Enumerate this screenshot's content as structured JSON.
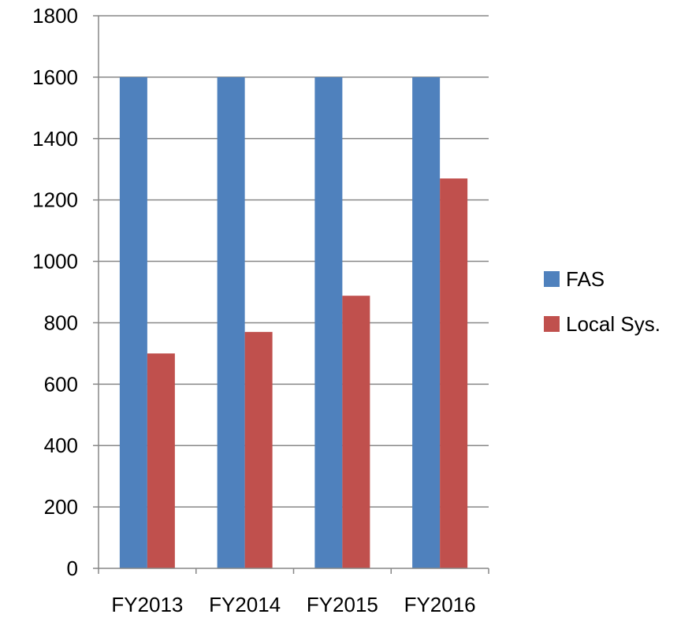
{
  "chart_data": {
    "type": "bar",
    "title": "",
    "xlabel": "",
    "ylabel": "",
    "categories": [
      "FY2013",
      "FY2014",
      "FY2015",
      "FY2016"
    ],
    "series": [
      {
        "name": "FAS",
        "color": "#4F81BD",
        "values": [
          1600,
          1600,
          1600,
          1600
        ]
      },
      {
        "name": "Local Sys.",
        "color": "#C0504D",
        "values": [
          700,
          770,
          888,
          1270
        ]
      }
    ],
    "ylim": [
      0,
      1800
    ],
    "yticks": [
      "0",
      "200",
      "400",
      "600",
      "800",
      "1000",
      "1200",
      "1400",
      "1600",
      "1800"
    ],
    "grid": true,
    "legend_position": "right"
  }
}
